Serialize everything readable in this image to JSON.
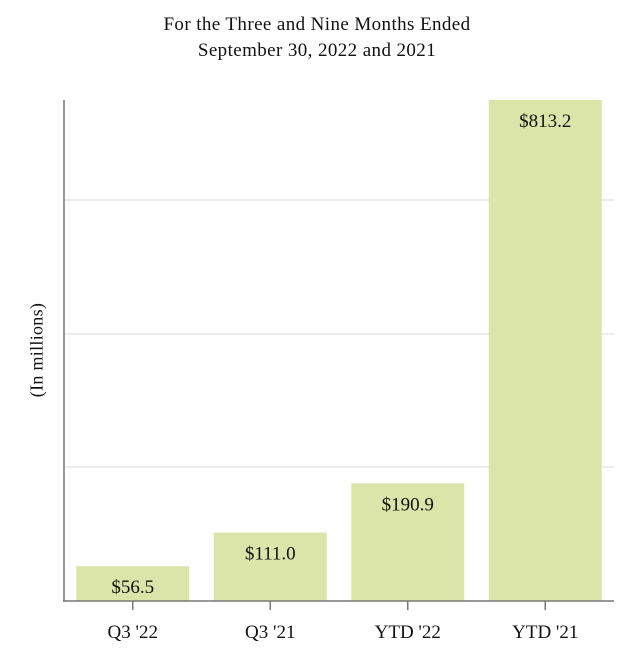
{
  "header": {
    "title_line_1": "For the Three and Nine Months Ended",
    "title_line_2": "September 30, 2022 and 2021"
  },
  "chart_data": {
    "type": "bar",
    "title": "For the Three and Nine Months Ended September 30, 2022 and 2021",
    "ylabel": "(In millions)",
    "xlabel": "",
    "categories": [
      "Q3 '22",
      "Q3 '21",
      "YTD '22",
      "YTD '21"
    ],
    "values": [
      56.5,
      111.0,
      190.9,
      813.2
    ],
    "value_labels": [
      "$56.5",
      "$111.0",
      "$190.9",
      "$813.2"
    ],
    "ylim": [
      0,
      813.2
    ],
    "grid": true,
    "bar_color": "#dbe5a9",
    "grid_color": "#e6e6e6",
    "axis_color": "#777777"
  }
}
